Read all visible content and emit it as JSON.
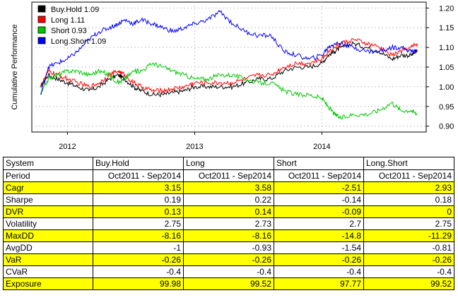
{
  "chart_data": {
    "type": "line",
    "ylabel": "Cumulative Performance",
    "x_ticks": [
      "2012",
      "2013",
      "2014"
    ],
    "y_ticks": [
      0.9,
      0.95,
      1.0,
      1.05,
      1.1,
      1.15,
      1.2
    ],
    "ylim": [
      0.885,
      1.215
    ],
    "x_range": [
      "2011-10",
      "2014-09"
    ],
    "grid": true,
    "legend": {
      "position": "top-left",
      "entries": [
        "Buy.Hold 1.09",
        "Long 1.11",
        "Short 0.93",
        "Long.Short 1.09"
      ]
    },
    "series": [
      {
        "name": "Buy.Hold",
        "color": "#000000",
        "points": [
          [
            2011.79,
            1.0
          ],
          [
            2011.85,
            1.03
          ],
          [
            2011.92,
            1.02
          ],
          [
            2012.0,
            1.01
          ],
          [
            2012.08,
            1.0
          ],
          [
            2012.17,
            0.99
          ],
          [
            2012.25,
            1.0
          ],
          [
            2012.33,
            1.02
          ],
          [
            2012.4,
            1.03
          ],
          [
            2012.45,
            1.02
          ],
          [
            2012.52,
            1.0
          ],
          [
            2012.58,
            0.99
          ],
          [
            2012.67,
            0.98
          ],
          [
            2012.75,
            0.98
          ],
          [
            2012.83,
            0.985
          ],
          [
            2012.92,
            0.99
          ],
          [
            2013.0,
            1.0
          ],
          [
            2013.1,
            1.0
          ],
          [
            2013.2,
            1.0
          ],
          [
            2013.3,
            1.0
          ],
          [
            2013.4,
            1.01
          ],
          [
            2013.5,
            1.02
          ],
          [
            2013.6,
            1.02
          ],
          [
            2013.7,
            1.04
          ],
          [
            2013.8,
            1.05
          ],
          [
            2013.9,
            1.05
          ],
          [
            2014.0,
            1.06
          ],
          [
            2014.05,
            1.08
          ],
          [
            2014.1,
            1.09
          ],
          [
            2014.15,
            1.1
          ],
          [
            2014.25,
            1.11
          ],
          [
            2014.35,
            1.1
          ],
          [
            2014.45,
            1.09
          ],
          [
            2014.55,
            1.07
          ],
          [
            2014.62,
            1.08
          ],
          [
            2014.7,
            1.08
          ],
          [
            2014.75,
            1.09
          ]
        ]
      },
      {
        "name": "Long",
        "color": "#ff0000",
        "points": [
          [
            2011.79,
            1.0
          ],
          [
            2011.85,
            1.04
          ],
          [
            2011.92,
            1.03
          ],
          [
            2012.0,
            1.02
          ],
          [
            2012.08,
            1.01
          ],
          [
            2012.17,
            1.0
          ],
          [
            2012.25,
            1.01
          ],
          [
            2012.33,
            1.03
          ],
          [
            2012.4,
            1.04
          ],
          [
            2012.45,
            1.03
          ],
          [
            2012.52,
            1.01
          ],
          [
            2012.58,
            1.0
          ],
          [
            2012.67,
            0.99
          ],
          [
            2012.75,
            0.99
          ],
          [
            2012.83,
            0.995
          ],
          [
            2012.92,
            1.0
          ],
          [
            2013.0,
            1.01
          ],
          [
            2013.1,
            1.01
          ],
          [
            2013.2,
            1.01
          ],
          [
            2013.3,
            1.01
          ],
          [
            2013.4,
            1.02
          ],
          [
            2013.5,
            1.03
          ],
          [
            2013.6,
            1.03
          ],
          [
            2013.7,
            1.05
          ],
          [
            2013.8,
            1.06
          ],
          [
            2013.9,
            1.06
          ],
          [
            2014.0,
            1.07
          ],
          [
            2014.05,
            1.09
          ],
          [
            2014.1,
            1.1
          ],
          [
            2014.15,
            1.11
          ],
          [
            2014.25,
            1.12
          ],
          [
            2014.35,
            1.11
          ],
          [
            2014.45,
            1.1
          ],
          [
            2014.55,
            1.08
          ],
          [
            2014.62,
            1.09
          ],
          [
            2014.7,
            1.1
          ],
          [
            2014.75,
            1.11
          ]
        ]
      },
      {
        "name": "Short",
        "color": "#00c800",
        "points": [
          [
            2011.79,
            0.98
          ],
          [
            2011.85,
            1.02
          ],
          [
            2011.92,
            1.03
          ],
          [
            2012.0,
            1.04
          ],
          [
            2012.08,
            1.04
          ],
          [
            2012.17,
            1.03
          ],
          [
            2012.25,
            1.04
          ],
          [
            2012.33,
            1.03
          ],
          [
            2012.4,
            1.01
          ],
          [
            2012.45,
            1.02
          ],
          [
            2012.52,
            1.04
          ],
          [
            2012.58,
            1.04
          ],
          [
            2012.67,
            1.06
          ],
          [
            2012.75,
            1.05
          ],
          [
            2012.83,
            1.04
          ],
          [
            2012.92,
            1.03
          ],
          [
            2013.0,
            1.02
          ],
          [
            2013.1,
            1.02
          ],
          [
            2013.2,
            1.03
          ],
          [
            2013.3,
            1.03
          ],
          [
            2013.4,
            1.02
          ],
          [
            2013.5,
            1.01
          ],
          [
            2013.6,
            1.01
          ],
          [
            2013.7,
            0.99
          ],
          [
            2013.8,
            0.98
          ],
          [
            2013.9,
            0.98
          ],
          [
            2014.0,
            0.97
          ],
          [
            2014.05,
            0.95
          ],
          [
            2014.1,
            0.93
          ],
          [
            2014.15,
            0.92
          ],
          [
            2014.25,
            0.93
          ],
          [
            2014.35,
            0.93
          ],
          [
            2014.45,
            0.94
          ],
          [
            2014.55,
            0.96
          ],
          [
            2014.62,
            0.94
          ],
          [
            2014.7,
            0.94
          ],
          [
            2014.75,
            0.93
          ]
        ]
      },
      {
        "name": "Long.Short",
        "color": "#0000ff",
        "points": [
          [
            2011.79,
            0.98
          ],
          [
            2011.85,
            1.05
          ],
          [
            2011.92,
            1.06
          ],
          [
            2012.0,
            1.07
          ],
          [
            2012.08,
            1.09
          ],
          [
            2012.17,
            1.12
          ],
          [
            2012.25,
            1.14
          ],
          [
            2012.33,
            1.15
          ],
          [
            2012.4,
            1.16
          ],
          [
            2012.45,
            1.17
          ],
          [
            2012.52,
            1.16
          ],
          [
            2012.58,
            1.17
          ],
          [
            2012.67,
            1.16
          ],
          [
            2012.75,
            1.15
          ],
          [
            2012.83,
            1.14
          ],
          [
            2012.92,
            1.15
          ],
          [
            2013.0,
            1.16
          ],
          [
            2013.1,
            1.17
          ],
          [
            2013.2,
            1.19
          ],
          [
            2013.3,
            1.16
          ],
          [
            2013.4,
            1.14
          ],
          [
            2013.5,
            1.13
          ],
          [
            2013.6,
            1.13
          ],
          [
            2013.7,
            1.09
          ],
          [
            2013.8,
            1.08
          ],
          [
            2013.9,
            1.07
          ],
          [
            2014.0,
            1.08
          ],
          [
            2014.05,
            1.1
          ],
          [
            2014.1,
            1.11
          ],
          [
            2014.15,
            1.11
          ],
          [
            2014.25,
            1.1
          ],
          [
            2014.35,
            1.09
          ],
          [
            2014.45,
            1.09
          ],
          [
            2014.55,
            1.1
          ],
          [
            2014.62,
            1.1
          ],
          [
            2014.7,
            1.09
          ],
          [
            2014.75,
            1.09
          ]
        ]
      }
    ]
  },
  "table": {
    "header": [
      "System",
      "Buy.Hold",
      "Long",
      "Short",
      "Long.Short"
    ],
    "rows": [
      {
        "label": "Period",
        "values": [
          "Oct2011 - Sep2014",
          "Oct2011 - Sep2014",
          "Oct2011 - Sep2014",
          "Oct2011 - Sep2014"
        ],
        "highlight": false
      },
      {
        "label": "Cagr",
        "values": [
          "3.15",
          "3.58",
          "-2.51",
          "2.93"
        ],
        "highlight": true
      },
      {
        "label": "Sharpe",
        "values": [
          "0.19",
          "0.22",
          "-0.14",
          "0.18"
        ],
        "highlight": false
      },
      {
        "label": "DVR",
        "values": [
          "0.13",
          "0.14",
          "-0.09",
          "0"
        ],
        "highlight": true
      },
      {
        "label": "Volatility",
        "values": [
          "2.75",
          "2.73",
          "2.7",
          "2.75"
        ],
        "highlight": false
      },
      {
        "label": "MaxDD",
        "values": [
          "-8.16",
          "-8.16",
          "-14.8",
          "-11.29"
        ],
        "highlight": true
      },
      {
        "label": "AvgDD",
        "values": [
          "-1",
          "-0.93",
          "-1.54",
          "-0.81"
        ],
        "highlight": false
      },
      {
        "label": "VaR",
        "values": [
          "-0.26",
          "-0.26",
          "-0.26",
          "-0.26"
        ],
        "highlight": true
      },
      {
        "label": "CVaR",
        "values": [
          "-0.4",
          "-0.4",
          "-0.4",
          "-0.4"
        ],
        "highlight": false
      },
      {
        "label": "Exposure",
        "values": [
          "99.98",
          "99.52",
          "97.77",
          "99.52"
        ],
        "highlight": true
      }
    ]
  }
}
